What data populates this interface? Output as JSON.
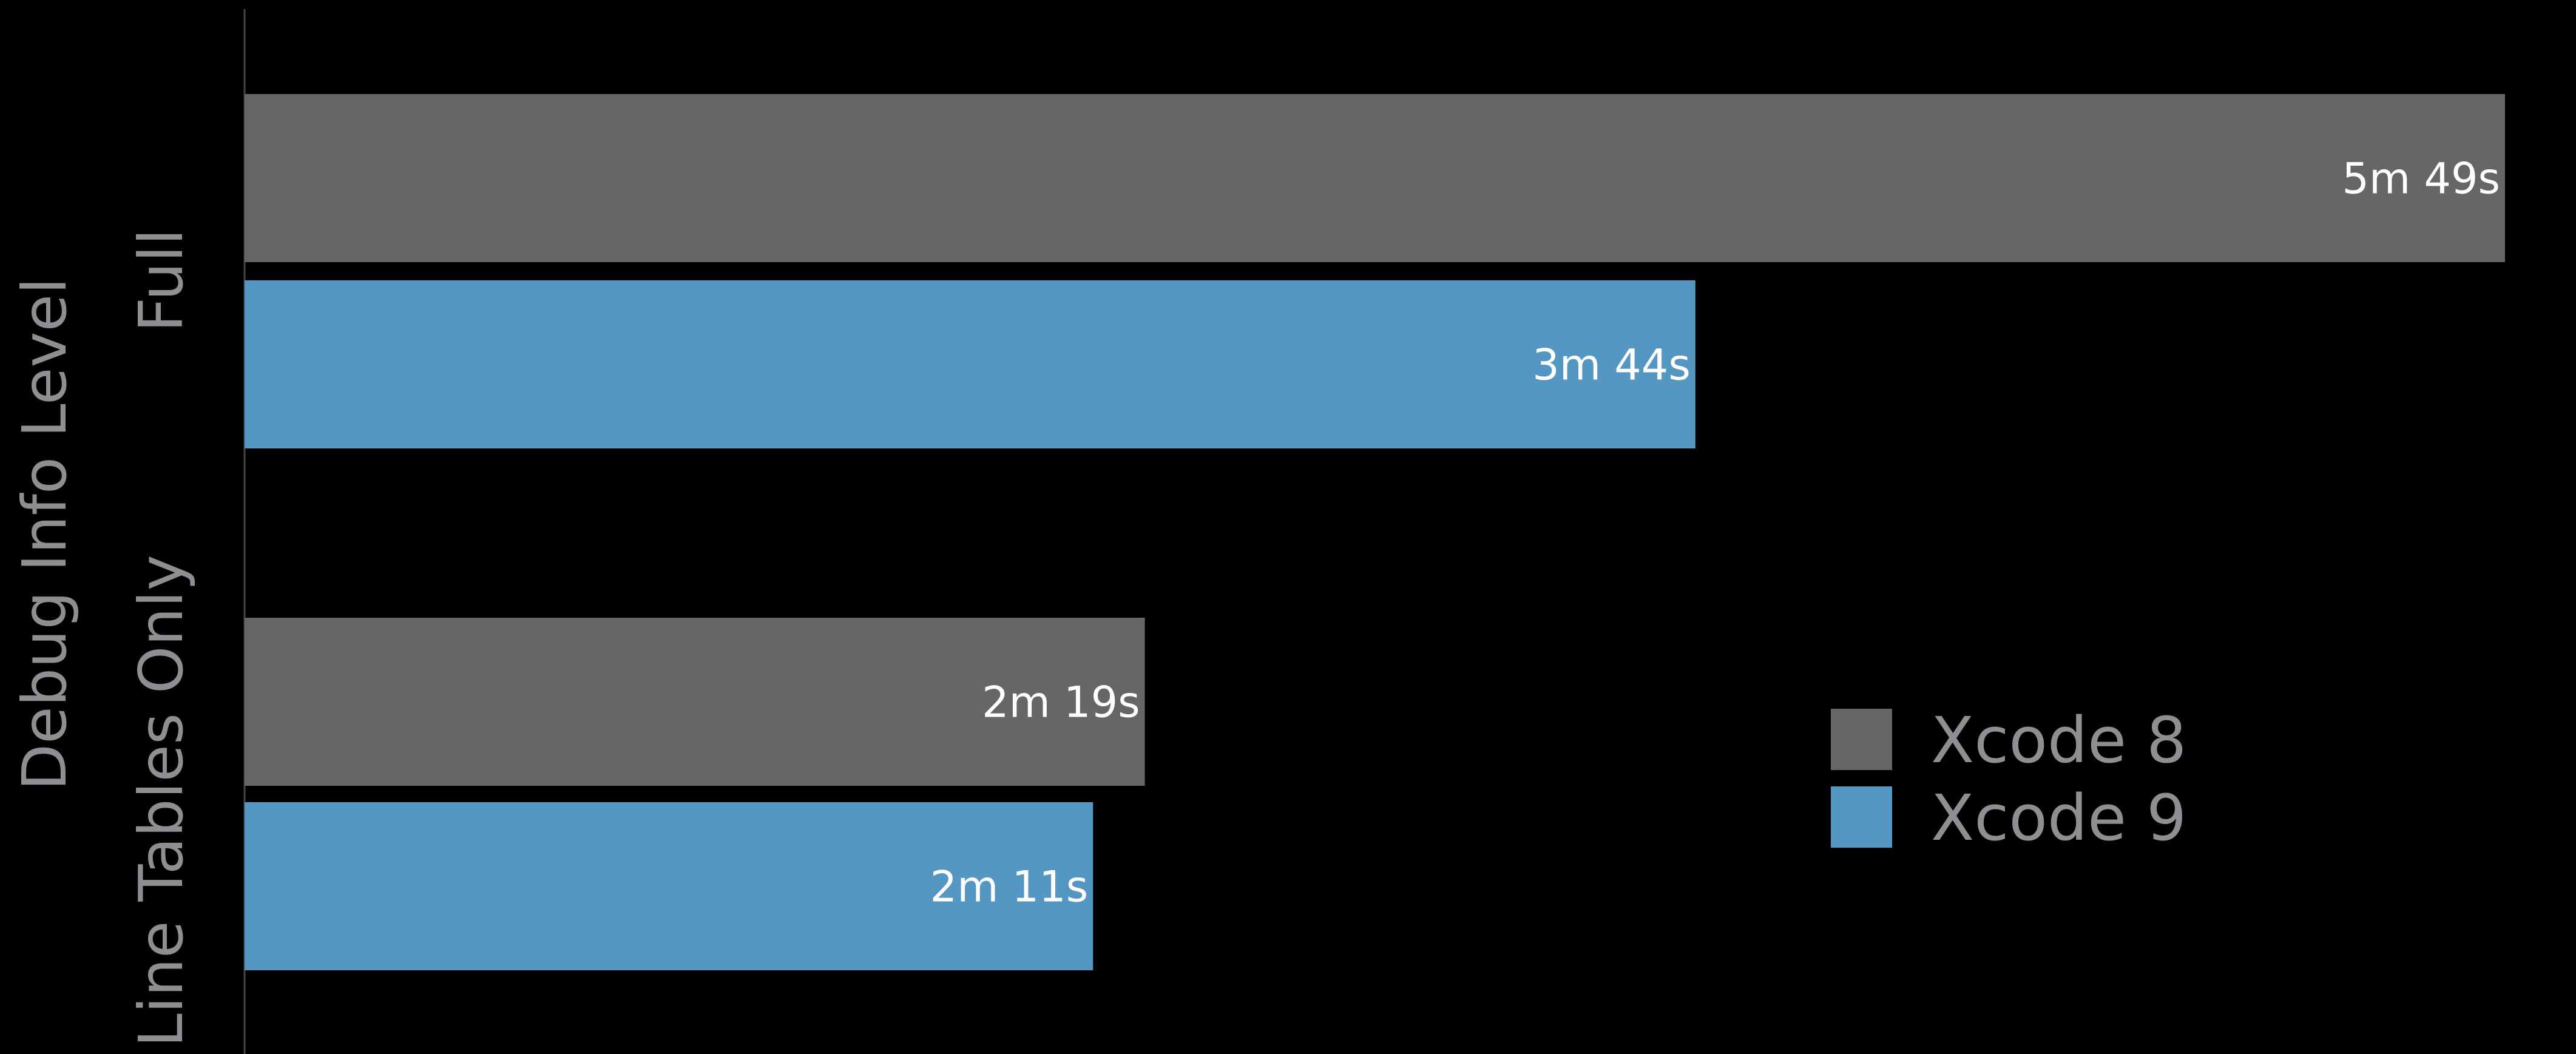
{
  "chart_data": {
    "type": "bar",
    "orientation": "horizontal",
    "ylabel": "Debug Info Level",
    "xlabel": "",
    "categories": [
      "Full",
      "Line Tables Only"
    ],
    "series": [
      {
        "name": "Xcode 8",
        "color": "#666666",
        "values": [
          349,
          139
        ],
        "labels": [
          "5m 49s",
          "2m 19s"
        ]
      },
      {
        "name": "Xcode 9",
        "color": "#5597c3",
        "values": [
          224,
          131
        ],
        "labels": [
          "3m 44s",
          "2m 11s"
        ]
      }
    ],
    "xlim": [
      0,
      349
    ],
    "grid": false,
    "legend_position": "bottom-right",
    "colors": {
      "background": "#000000",
      "axis_line": "#444444",
      "text_muted": "#8e8e93",
      "data_label": "#ffffff"
    }
  }
}
